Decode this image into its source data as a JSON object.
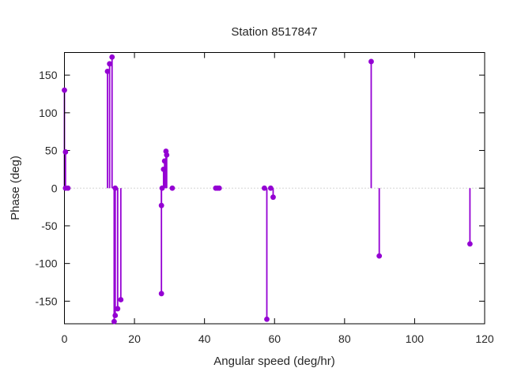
{
  "chart_data": {
    "type": "stem",
    "title": "Station 8517847",
    "xlabel": "Angular speed (deg/hr)",
    "ylabel": "Phase (deg)",
    "xlim": [
      0,
      120
    ],
    "ylim": [
      -180,
      180
    ],
    "x_ticks": [
      0,
      20,
      40,
      60,
      80,
      100,
      120
    ],
    "y_ticks": [
      -150,
      -100,
      -50,
      0,
      50,
      100,
      150
    ],
    "grid": false,
    "zero_line": true,
    "legend_position": "none",
    "colors": {
      "series": "#9400D3",
      "border": "#000000",
      "zero_line": "#aaaaaa",
      "text": "#262626"
    },
    "points": [
      [
        0,
        130
      ],
      [
        0.3,
        48
      ],
      [
        0.3,
        0
      ],
      [
        1.0,
        0
      ],
      [
        12.3,
        155
      ],
      [
        12.9,
        165
      ],
      [
        13.6,
        174
      ],
      [
        14.2,
        -177
      ],
      [
        14.5,
        -169
      ],
      [
        14.5,
        0
      ],
      [
        15.2,
        -160
      ],
      [
        16.1,
        -148
      ],
      [
        27.7,
        -140
      ],
      [
        27.7,
        -23
      ],
      [
        27.9,
        0
      ],
      [
        28.3,
        25
      ],
      [
        28.6,
        36
      ],
      [
        29.0,
        49
      ],
      [
        29.2,
        44
      ],
      [
        30.8,
        0
      ],
      [
        43.2,
        0
      ],
      [
        43.7,
        0
      ],
      [
        44.2,
        0
      ],
      [
        57.1,
        0
      ],
      [
        57.8,
        -174
      ],
      [
        58.9,
        0
      ],
      [
        59.6,
        -12
      ],
      [
        87.6,
        168
      ],
      [
        89.9,
        -90
      ],
      [
        115.8,
        -74
      ]
    ]
  }
}
